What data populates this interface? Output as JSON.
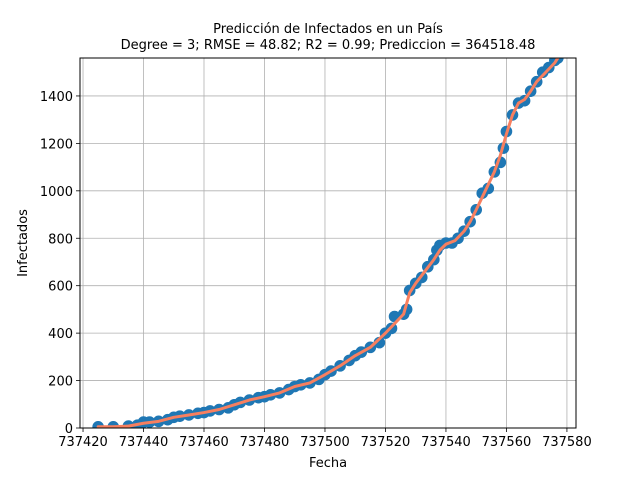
{
  "chart_data": {
    "type": "scatter",
    "title": "Predicción de Infectados en un País",
    "subtitle": "Degree = 3; RMSE = 48.82; R2 = 0.99; Prediccion = 364518.48",
    "xlabel": "Fecha",
    "ylabel": "Infectados",
    "xlim": [
      737419,
      737583
    ],
    "ylim": [
      0,
      1560
    ],
    "xticks": [
      737420,
      737440,
      737460,
      737480,
      737500,
      737520,
      737540,
      737560,
      737580
    ],
    "yticks": [
      0,
      200,
      400,
      600,
      800,
      1000,
      1200,
      1400
    ],
    "grid": true,
    "colors": {
      "points": "#1f77b4",
      "fit": "#f77f5f"
    },
    "series": [
      {
        "type": "scatter",
        "x": [
          737425,
          737430,
          737435,
          737438,
          737440,
          737442,
          737445,
          737448,
          737450,
          737452,
          737455,
          737458,
          737460,
          737462,
          737465,
          737468,
          737470,
          737472,
          737475,
          737478,
          737480,
          737482,
          737485,
          737488,
          737490,
          737492,
          737495,
          737498,
          737500,
          737502,
          737505,
          737508,
          737510,
          737512,
          737515,
          737518,
          737520,
          737522,
          737523,
          737526,
          737527,
          737528,
          737530,
          737532,
          737534,
          737536,
          737537,
          737538,
          737540,
          737542,
          737544,
          737546,
          737548,
          737550,
          737552,
          737554,
          737556,
          737558,
          737559,
          737560,
          737562,
          737564,
          737566,
          737568,
          737570,
          737572,
          737574,
          737576,
          737577
        ],
        "y": [
          5,
          5,
          8,
          12,
          25,
          25,
          28,
          35,
          45,
          50,
          55,
          62,
          65,
          72,
          78,
          85,
          98,
          108,
          118,
          128,
          132,
          140,
          148,
          162,
          175,
          182,
          190,
          205,
          225,
          240,
          262,
          285,
          305,
          320,
          340,
          360,
          400,
          420,
          470,
          480,
          500,
          580,
          610,
          635,
          680,
          710,
          750,
          770,
          780,
          780,
          800,
          830,
          870,
          920,
          990,
          1010,
          1080,
          1120,
          1180,
          1250,
          1320,
          1370,
          1380,
          1420,
          1460,
          1500,
          1520,
          1550,
          1560
        ]
      },
      {
        "type": "line",
        "x": [
          737425,
          737430,
          737435,
          737440,
          737445,
          737450,
          737455,
          737460,
          737465,
          737470,
          737475,
          737480,
          737485,
          737490,
          737495,
          737500,
          737505,
          737510,
          737515,
          737520,
          737523,
          737526,
          737528,
          737530,
          737533,
          737536,
          737538,
          737540,
          737543,
          737546,
          737548,
          737550,
          737553,
          737556,
          737558,
          737560,
          737562,
          737564,
          737566,
          737568,
          737570,
          737573,
          737576,
          737577
        ],
        "y": [
          5,
          5,
          8,
          20,
          28,
          45,
          55,
          65,
          78,
          98,
          118,
          132,
          148,
          175,
          190,
          225,
          262,
          305,
          340,
          400,
          440,
          480,
          570,
          610,
          660,
          710,
          750,
          775,
          790,
          830,
          870,
          920,
          1000,
          1080,
          1150,
          1240,
          1320,
          1370,
          1385,
          1420,
          1460,
          1500,
          1540,
          1560
        ]
      }
    ]
  }
}
